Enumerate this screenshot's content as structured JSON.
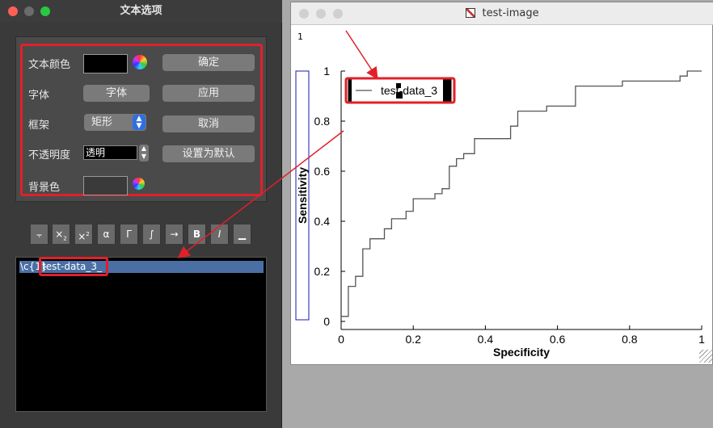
{
  "dialog": {
    "title": "文本选项",
    "rows": {
      "text_color_label": "文本颜色",
      "font_label": "字体",
      "frame_label": "框架",
      "opacity_label": "不透明度",
      "bg_color_label": "背景色"
    },
    "font_button": "字体",
    "frame_select": "矩形",
    "opacity_value": "透明",
    "buttons": {
      "ok": "确定",
      "apply": "应用",
      "cancel": "取消",
      "set_default": "设置为默认"
    },
    "toolbar": [
      "α",
      "Γ",
      "∫",
      "→",
      "B",
      "I"
    ],
    "editor_text_prefix": "\\c{1}",
    "editor_text_highlight": "test-data_3_"
  },
  "window": {
    "title": "test-image",
    "corner_label": "1"
  },
  "chart_data": {
    "type": "line",
    "xlabel": "Specificity",
    "ylabel": "Sensitivity",
    "xlim": [
      0,
      1
    ],
    "ylim": [
      0,
      1
    ],
    "xticks": [
      "0",
      "0.2",
      "0.4",
      "0.6",
      "0.8",
      "1"
    ],
    "yticks": [
      "0",
      "0.2",
      "0.4",
      "0.6",
      "0.8",
      "1"
    ],
    "legend": "test-data_3",
    "legend_position": "top-left",
    "series": [
      {
        "name": "test-data_3",
        "x": [
          0,
          0.02,
          0.02,
          0.04,
          0.04,
          0.06,
          0.06,
          0.08,
          0.08,
          0.12,
          0.12,
          0.14,
          0.14,
          0.18,
          0.18,
          0.2,
          0.2,
          0.26,
          0.26,
          0.28,
          0.28,
          0.3,
          0.3,
          0.32,
          0.32,
          0.34,
          0.34,
          0.37,
          0.37,
          0.47,
          0.47,
          0.49,
          0.49,
          0.57,
          0.57,
          0.65,
          0.65,
          0.78,
          0.78,
          0.94,
          0.94,
          0.96,
          0.96,
          1
        ],
        "y": [
          0.02,
          0.02,
          0.14,
          0.14,
          0.18,
          0.18,
          0.29,
          0.29,
          0.33,
          0.33,
          0.37,
          0.37,
          0.41,
          0.41,
          0.44,
          0.44,
          0.49,
          0.49,
          0.51,
          0.51,
          0.53,
          0.53,
          0.62,
          0.62,
          0.65,
          0.65,
          0.67,
          0.67,
          0.73,
          0.73,
          0.78,
          0.78,
          0.84,
          0.84,
          0.86,
          0.86,
          0.94,
          0.94,
          0.96,
          0.96,
          0.98,
          0.98,
          1,
          1
        ]
      }
    ]
  }
}
